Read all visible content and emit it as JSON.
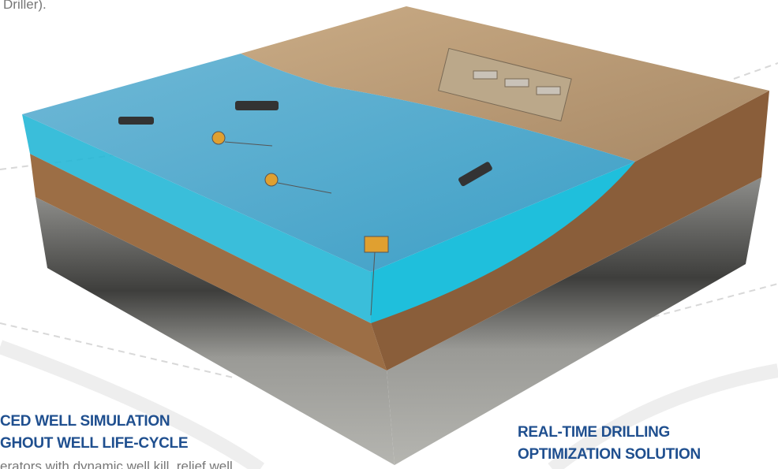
{
  "top_text": "Driller).",
  "left_block": {
    "title_lines": [
      "CED WELL SIMULATION",
      "GHOUT WELL LIFE-CYCLE"
    ],
    "body": "erators with dynamic well kill, relief well"
  },
  "right_block": {
    "title_lines": [
      "REAL-TIME DRILLING",
      "OPTIMIZATION SOLUTION"
    ]
  }
}
